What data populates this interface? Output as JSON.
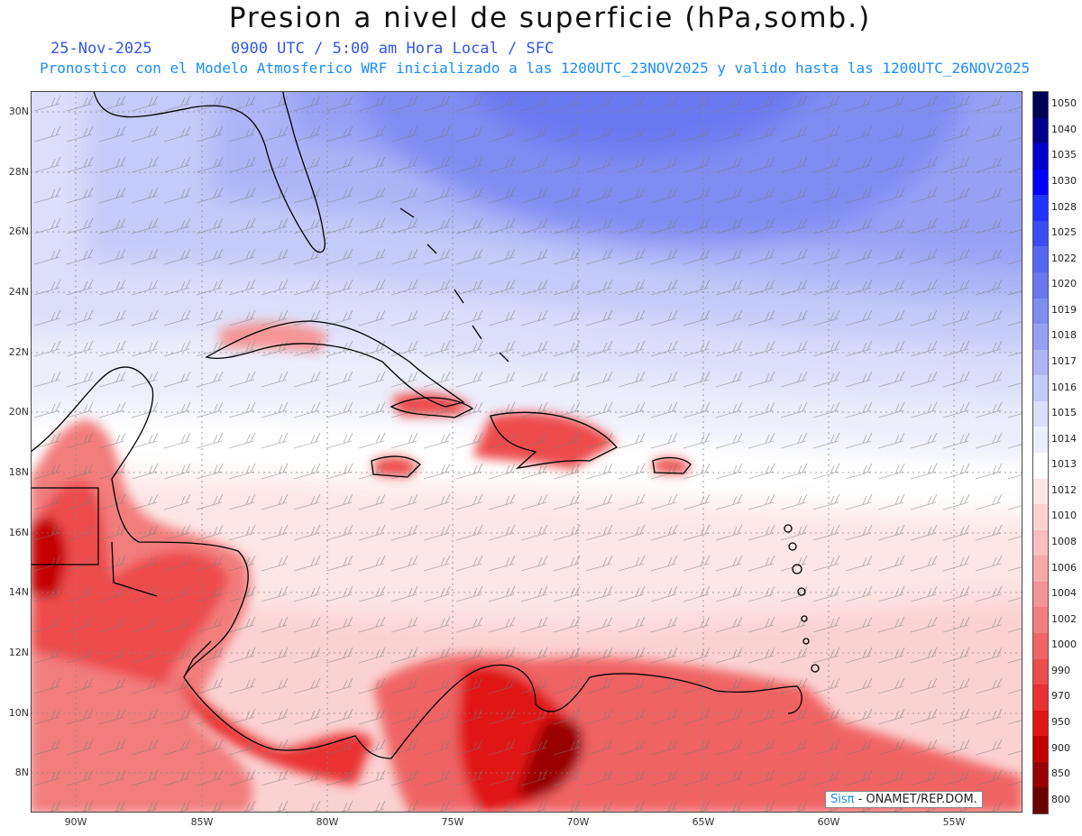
{
  "header": {
    "title": "Presion a nivel de superficie (hPa,somb.)",
    "date": "25-Nov-2025",
    "valid_time": "0900 UTC / 5:00 am Hora Local / SFC",
    "model_info": "Pronostico con el Modelo Atmosferico WRF inicializado a las 1200UTC_23NOV2025 y valido hasta las  1200UTC_26NOV2025"
  },
  "map": {
    "latitude_labels": [
      "30N",
      "28N",
      "26N",
      "24N",
      "22N",
      "20N",
      "18N",
      "16N",
      "14N",
      "12N",
      "10N",
      "8N"
    ],
    "longitude_labels": [
      "90W",
      "85W",
      "80W",
      "75W",
      "70W",
      "65W",
      "60W",
      "55W"
    ],
    "grid_lines": "dotted",
    "wind_barbs": true
  },
  "colorbar": {
    "levels": [
      "1050",
      "1040",
      "1035",
      "1030",
      "1028",
      "1025",
      "1022",
      "1020",
      "1019",
      "1018",
      "1017",
      "1016",
      "1015",
      "1014",
      "1013",
      "1012",
      "1010",
      "1008",
      "1006",
      "1004",
      "1002",
      "1000",
      "990",
      "970",
      "950",
      "900",
      "850",
      "800"
    ],
    "colors": [
      "#000055",
      "#00008b",
      "#0000cd",
      "#0000ff",
      "#2233ff",
      "#3a4cf5",
      "#5566f2",
      "#6a78f0",
      "#7f8cf2",
      "#96a1f4",
      "#aeb5f6",
      "#c5cbf8",
      "#dbdffa",
      "#eceefc",
      "#ffffff",
      "#fde6e6",
      "#fbd2d2",
      "#f9bebe",
      "#f7a9a9",
      "#f59494",
      "#f27d7d",
      "#f06464",
      "#ee4b4b",
      "#ea3030",
      "#e01515",
      "#c30000",
      "#990000",
      "#6b0000"
    ]
  },
  "credit": {
    "logo": "Sisπ",
    "text": "- ONAMET/REP.DOM."
  }
}
